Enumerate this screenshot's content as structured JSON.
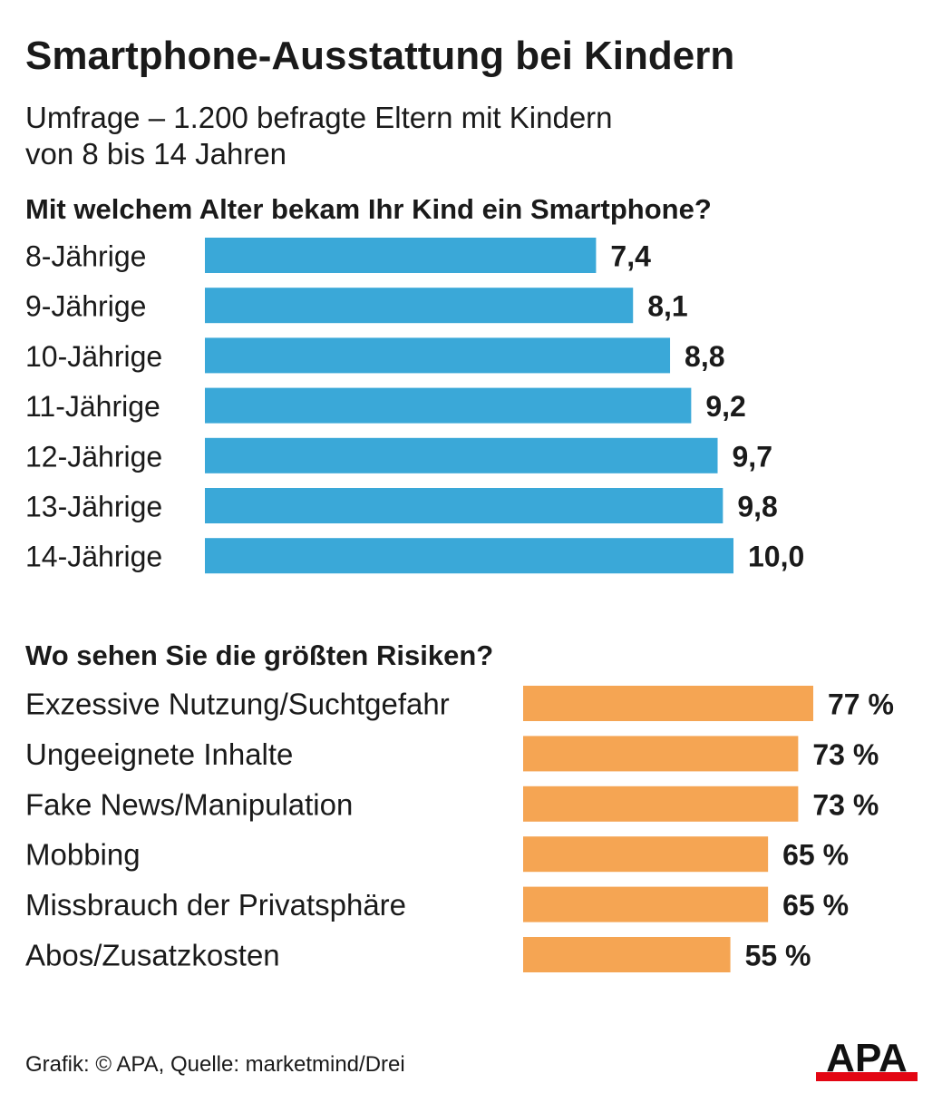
{
  "title": "Smartphone-Ausstattung bei Kindern",
  "subtitle_lines": [
    "Umfrage – 1.200 befragte Eltern mit Kindern",
    "von 8 bis 14 Jahren"
  ],
  "footer": "Grafik: © APA, Quelle: marketmind/Drei",
  "logo_text": "APA",
  "colors": {
    "bar_blue": "#3aa8d8",
    "bar_orange": "#f5a553",
    "logo_red": "#e30613",
    "text": "#1a1a1a"
  },
  "chart_data": [
    {
      "type": "bar",
      "orientation": "horizontal",
      "title": "Mit welchem Alter bekam Ihr Kind ein Smartphone?",
      "categories": [
        "8-Jährige",
        "9-Jährige",
        "10-Jährige",
        "11-Jährige",
        "12-Jährige",
        "13-Jährige",
        "14-Jährige"
      ],
      "values": [
        7.4,
        8.1,
        8.8,
        9.2,
        9.7,
        9.8,
        10.0
      ],
      "value_labels": [
        "7,4",
        "8,1",
        "8,8",
        "9,2",
        "9,7",
        "9,8",
        "10,0"
      ],
      "xlim": [
        0,
        10
      ],
      "xlabel": "",
      "ylabel": ""
    },
    {
      "type": "bar",
      "orientation": "horizontal",
      "title": "Wo sehen Sie die größten Risiken?",
      "categories": [
        "Exzessive Nutzung/Suchtgefahr",
        "Ungeeignete Inhalte",
        "Fake News/Manipulation",
        "Mobbing",
        "Missbrauch der Privatsphäre",
        "Abos/Zusatzkosten"
      ],
      "values": [
        77,
        73,
        73,
        65,
        65,
        55
      ],
      "value_labels": [
        "77 %",
        "73 %",
        "73 %",
        "65 %",
        "65 %",
        "55 %"
      ],
      "xlim": [
        0,
        77
      ],
      "unit": "%",
      "xlabel": "",
      "ylabel": ""
    }
  ]
}
